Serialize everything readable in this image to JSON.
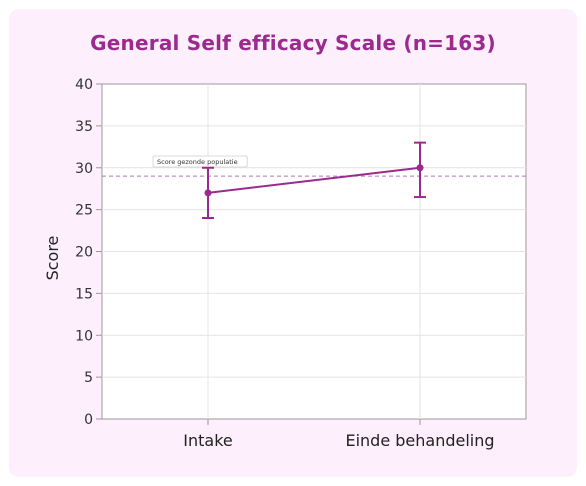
{
  "chart_data": {
    "type": "line",
    "title": "General Self efficacy Scale (n=163)",
    "xlabel": "",
    "ylabel": "Score",
    "categories": [
      "Intake",
      "Einde behandeling"
    ],
    "series": [
      {
        "values": [
          27,
          30
        ],
        "error_low": [
          24,
          26.5
        ],
        "error_high": [
          30,
          33
        ]
      }
    ],
    "reference_line": {
      "label": "Score gezonde populatie",
      "value": 29
    },
    "ylim": [
      0,
      40
    ],
    "yticks": [
      0,
      5,
      10,
      15,
      20,
      25,
      30,
      35,
      40
    ],
    "grid": true,
    "colors": {
      "series": "#9b2a8e",
      "reference": "#b07aa8",
      "title": "#9b2a8e",
      "background": "#fdeffb"
    }
  }
}
